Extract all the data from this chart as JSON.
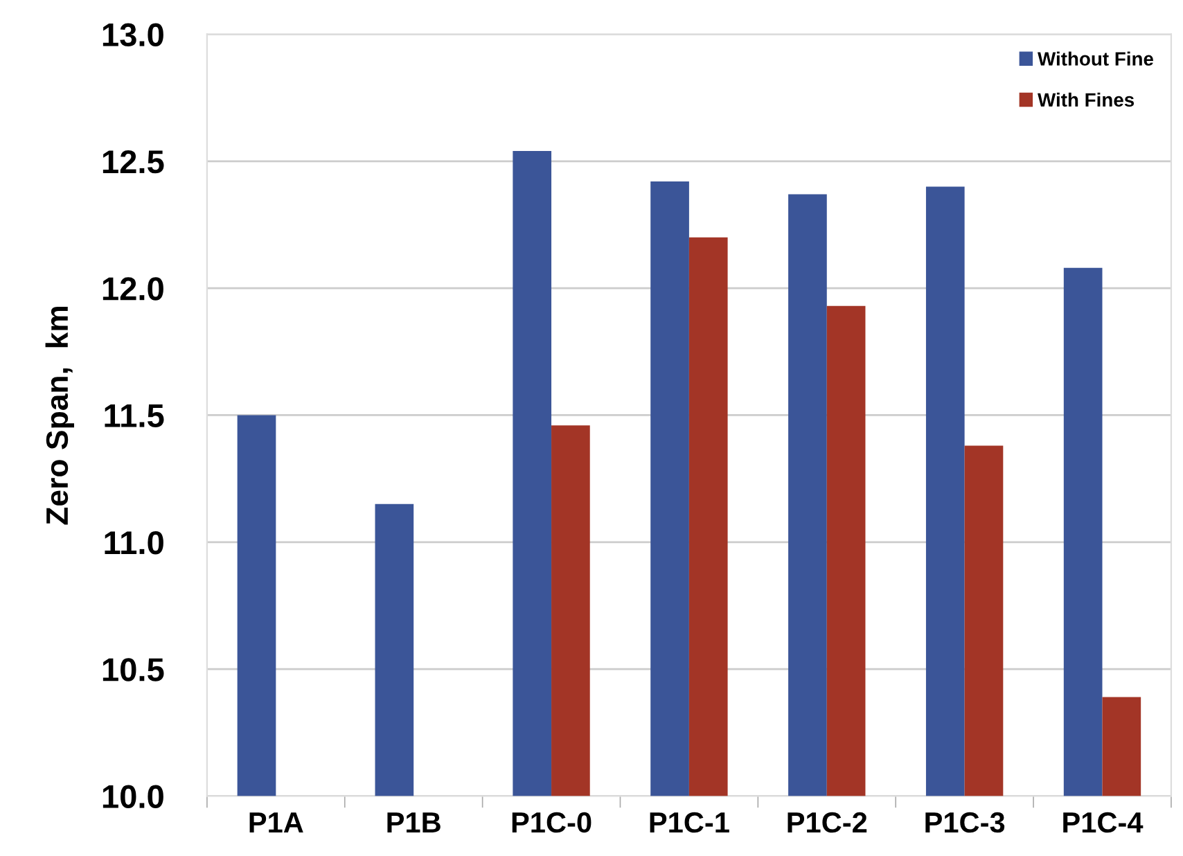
{
  "chart_data": {
    "type": "bar",
    "ylabel": "Zero Span,  km",
    "categories": [
      "P1A",
      "P1B",
      "P1C-0",
      "P1C-1",
      "P1C-2",
      "P1C-3",
      "P1C-4"
    ],
    "series": [
      {
        "name": "Without Fine",
        "color": "#3b5598",
        "values": [
          11.5,
          11.15,
          12.54,
          12.42,
          12.37,
          12.4,
          12.08
        ]
      },
      {
        "name": "With Fines",
        "color": "#a33526",
        "values": [
          null,
          null,
          11.46,
          12.2,
          11.93,
          11.38,
          10.39
        ]
      }
    ],
    "ylim": [
      10.0,
      13.0
    ],
    "yticks": [
      {
        "value": 10.0,
        "label": "10.0"
      },
      {
        "value": 10.5,
        "label": "10.5"
      },
      {
        "value": 11.0,
        "label": "11.0"
      },
      {
        "value": 11.5,
        "label": "11.5"
      },
      {
        "value": 12.0,
        "label": "12.0"
      },
      {
        "value": 12.5,
        "label": "12.5"
      },
      {
        "value": 13.0,
        "label": "13.0"
      }
    ],
    "grid": "y",
    "legend": "top right"
  }
}
